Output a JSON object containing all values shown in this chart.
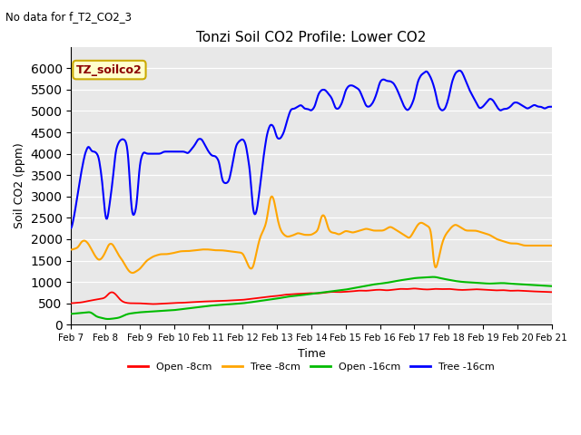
{
  "title": "Tonzi Soil CO2 Profile: Lower CO2",
  "subtitle": "No data for f_T2_CO2_3",
  "xlabel": "Time",
  "ylabel": "Soil CO2 (ppm)",
  "ylim": [
    0,
    6500
  ],
  "yticks": [
    0,
    500,
    1000,
    1500,
    2000,
    2500,
    3000,
    3500,
    4000,
    4500,
    5000,
    5500,
    6000
  ],
  "bg_color": "#e8e8e8",
  "legend_box_color": "#ffffcc",
  "legend_box_edge": "#ccaa00",
  "legend_label": "TZ_soilco2",
  "series_labels": [
    "Open -8cm",
    "Tree -8cm",
    "Open -16cm",
    "Tree -16cm"
  ],
  "series_colors": [
    "#ff0000",
    "#ffa500",
    "#00bb00",
    "#0000ff"
  ],
  "x_start": 7.0,
  "x_end": 21.0,
  "xtick_positions": [
    7,
    8,
    9,
    10,
    11,
    12,
    13,
    14,
    15,
    16,
    17,
    18,
    19,
    20,
    21
  ],
  "xtick_labels": [
    "Feb 7",
    "Feb 8",
    "Feb 9",
    "Feb 10",
    "Feb 11",
    "Feb 12",
    "Feb 13",
    "Feb 14",
    "Feb 15",
    "Feb 16",
    "Feb 17",
    "Feb 18",
    "Feb 19",
    "Feb 20",
    "Feb 21"
  ]
}
